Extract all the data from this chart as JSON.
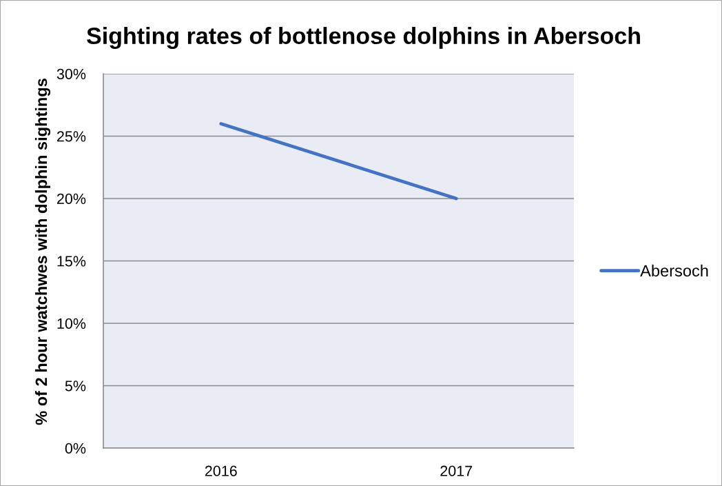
{
  "chart_data": {
    "type": "line",
    "title": "Sighting rates of bottlenose dolphins in Abersoch",
    "ylabel": "% of 2 hour watchwes with dolphin sightings",
    "categories": [
      "2016",
      "2017"
    ],
    "series": [
      {
        "name": "Abersoch",
        "color": "#4472c4",
        "values": [
          26,
          20
        ]
      }
    ],
    "ylim": [
      0,
      30
    ],
    "yticks": [
      {
        "value": 0,
        "label": "0%"
      },
      {
        "value": 5,
        "label": "5%"
      },
      {
        "value": 10,
        "label": "10%"
      },
      {
        "value": 15,
        "label": "15%"
      },
      {
        "value": 20,
        "label": "20%"
      },
      {
        "value": 25,
        "label": "25%"
      },
      {
        "value": 30,
        "label": "30%"
      }
    ],
    "grid": "y",
    "legend": "right"
  }
}
